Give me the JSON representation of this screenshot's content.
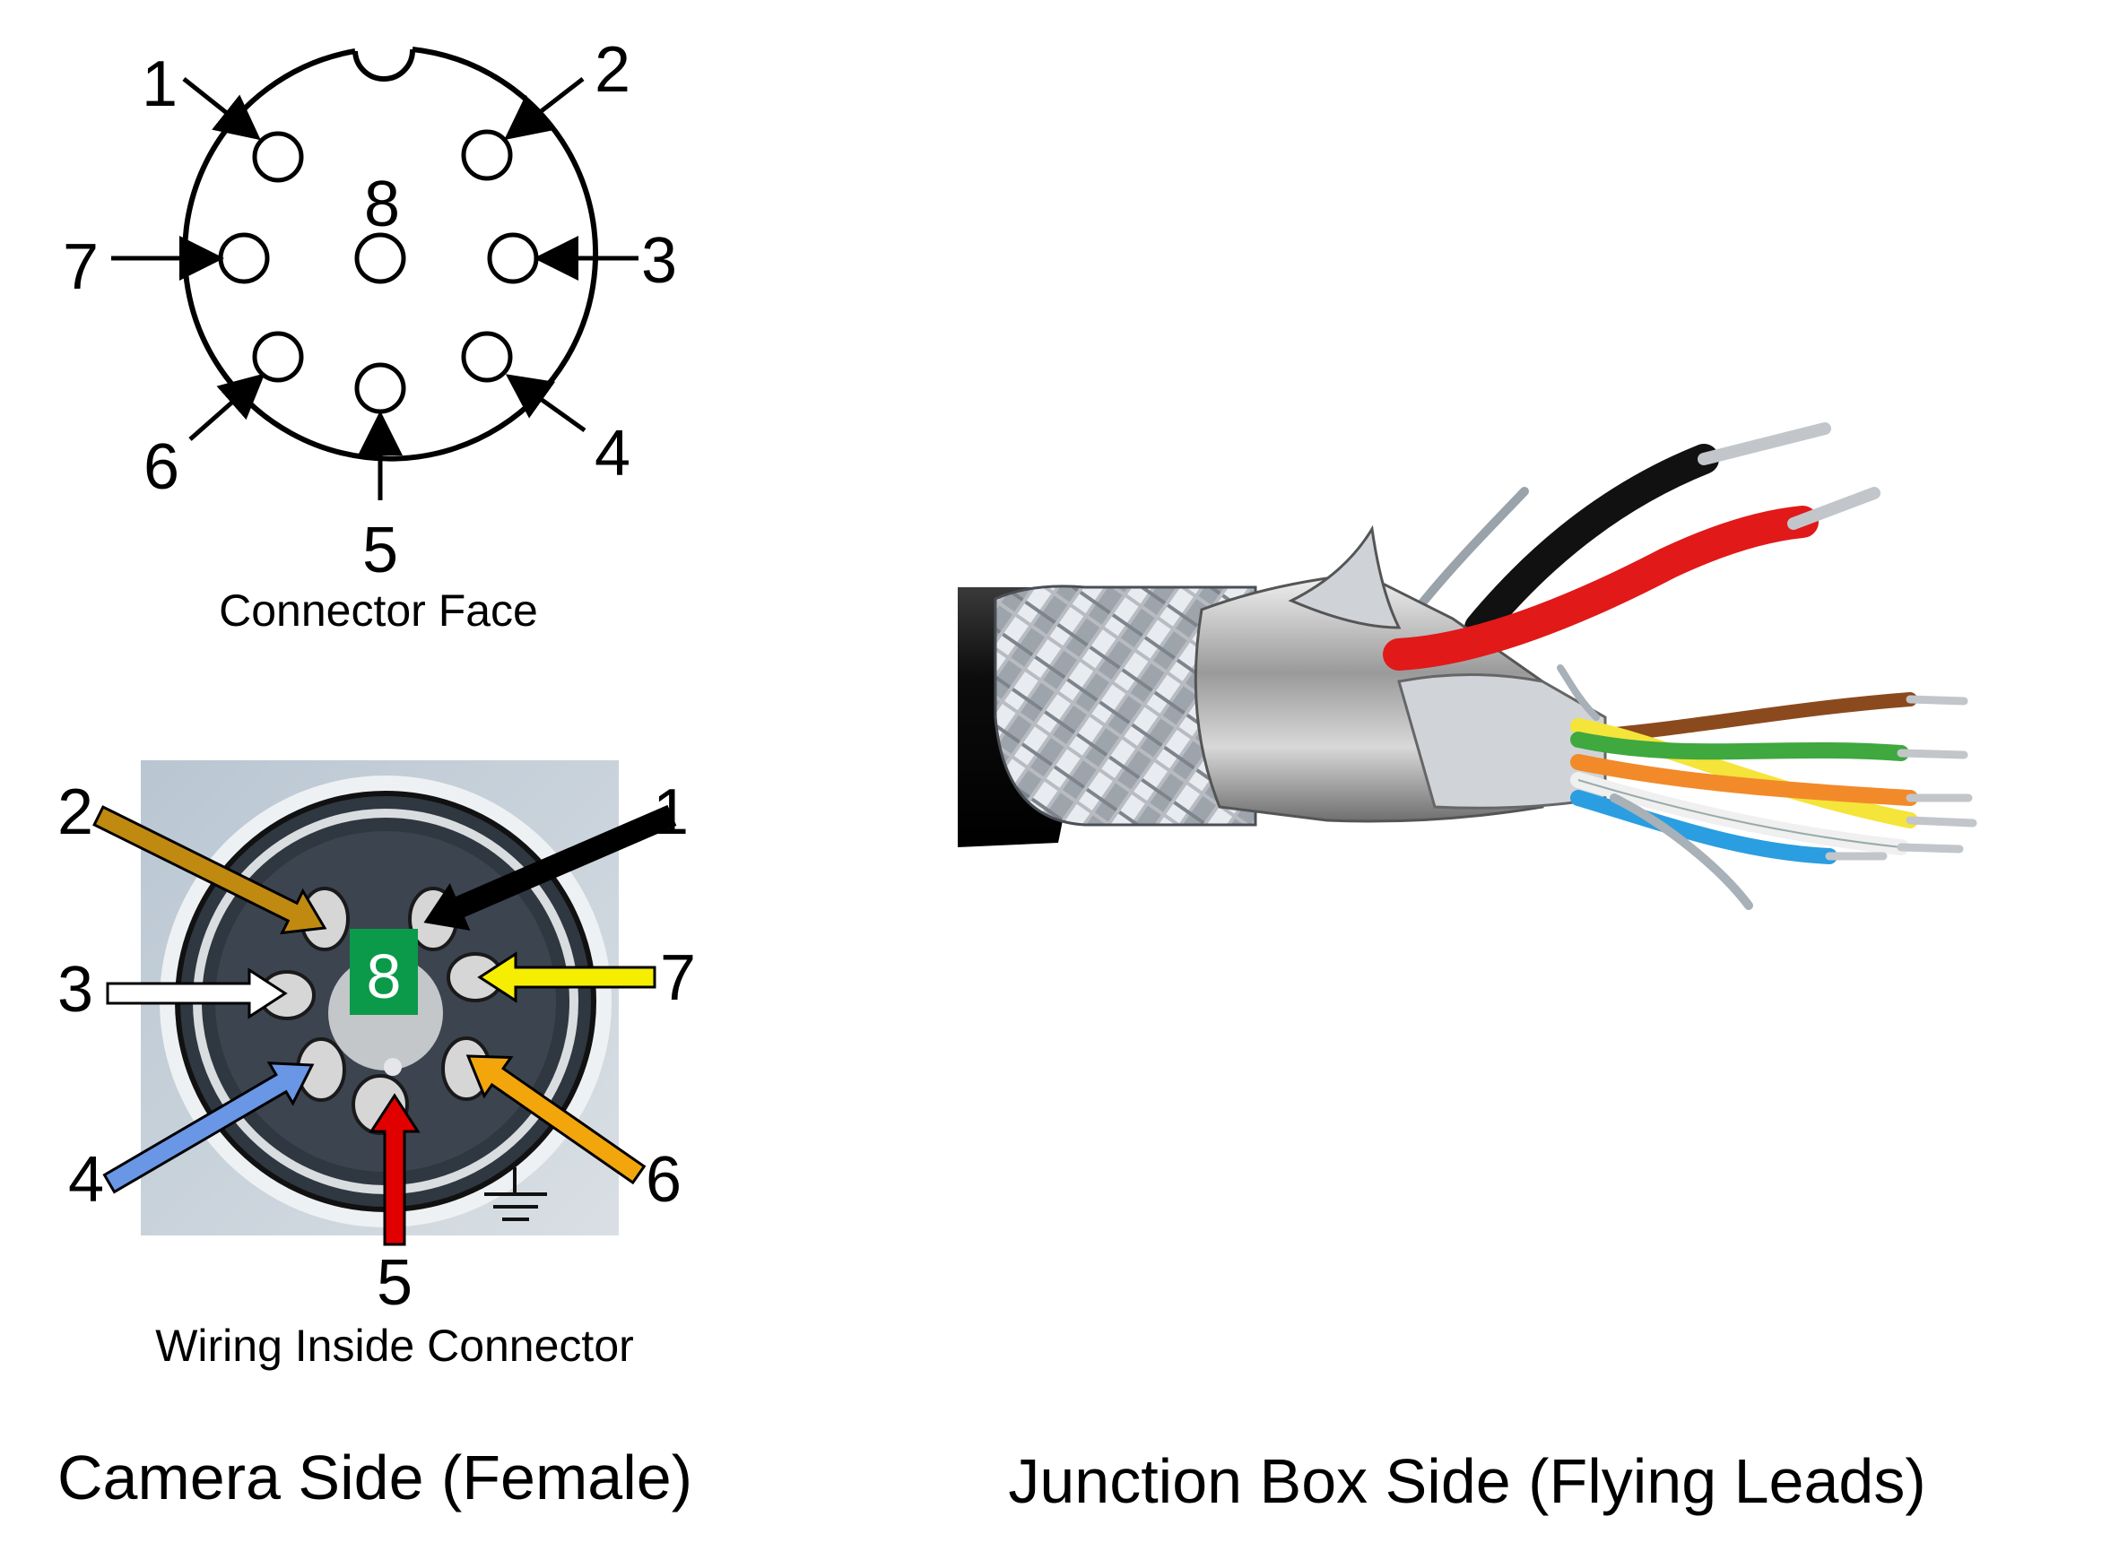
{
  "connector_face": {
    "caption": "Connector Face",
    "pins": [
      {
        "id": "1",
        "label": "1"
      },
      {
        "id": "2",
        "label": "2"
      },
      {
        "id": "3",
        "label": "3"
      },
      {
        "id": "4",
        "label": "4"
      },
      {
        "id": "5",
        "label": "5"
      },
      {
        "id": "6",
        "label": "6"
      },
      {
        "id": "7",
        "label": "7"
      },
      {
        "id": "8",
        "label": "8"
      }
    ]
  },
  "wiring": {
    "caption": "Wiring Inside Connector",
    "center_label": "8",
    "pins": [
      {
        "id": "1",
        "label": "1",
        "color": "#000000"
      },
      {
        "id": "2",
        "label": "2",
        "color": "#c08a10"
      },
      {
        "id": "3",
        "label": "3",
        "color": "#ffffff"
      },
      {
        "id": "4",
        "label": "4",
        "color": "#6a96e6"
      },
      {
        "id": "5",
        "label": "5",
        "color": "#e00000"
      },
      {
        "id": "6",
        "label": "6",
        "color": "#f2a60c"
      },
      {
        "id": "7",
        "label": "7",
        "color": "#f6ee00"
      }
    ],
    "center_color": "#0a9a4a"
  },
  "footer": {
    "camera_side": "Camera Side (Female)",
    "junction_side": "Junction Box Side (Flying Leads)"
  },
  "cable": {
    "jacket_color": "#111111",
    "wire_colors": [
      "#111111",
      "#e11919",
      "#f5e43a",
      "#3fa83f",
      "#8b4a1e",
      "#f28a2a",
      "#f0f0f0",
      "#2a9ee0",
      "#c8c8c8"
    ]
  }
}
